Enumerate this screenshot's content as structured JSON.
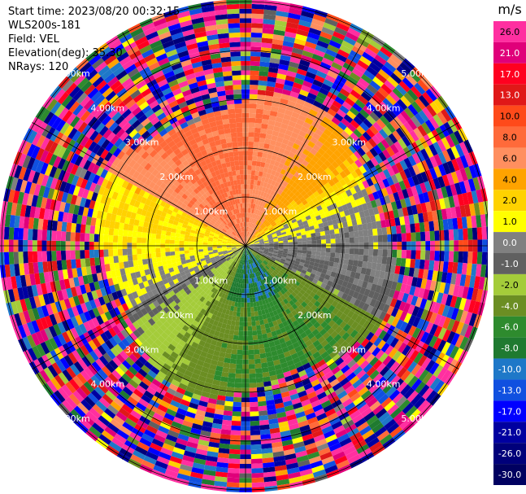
{
  "info": {
    "start_time": "Start time: 2023/08/20 00:32:15",
    "instrument": "WLS200s-181",
    "field": "Field: VEL",
    "elevation": "Elevation(deg): 35.30",
    "nrays": "NRays: 120"
  },
  "colorbar": {
    "unit": "m/s",
    "ticks": [
      "26.0",
      "21.0",
      "17.0",
      "13.0",
      "10.0",
      "8.0",
      "6.0",
      "4.0",
      "2.0",
      "1.0",
      "0.0",
      "-1.0",
      "-2.0",
      "-4.0",
      "-6.0",
      "-8.0",
      "-10.0",
      "-13.0",
      "-17.0",
      "-21.0",
      "-26.0",
      "-30.0"
    ],
    "colors": [
      "#ff2fa0",
      "#e0007a",
      "#ff0020",
      "#e01818",
      "#ff4a1a",
      "#ff6a3a",
      "#ff8f5f",
      "#ffa300",
      "#ffd200",
      "#ffff00",
      "#808080",
      "#606060",
      "#a4cc3a",
      "#6b8e23",
      "#2e8b2e",
      "#1f7a30",
      "#1e78c8",
      "#1050e0",
      "#0000ff",
      "#0000a0",
      "#00007a",
      "#000060"
    ]
  },
  "chart_data": {
    "type": "ppi",
    "field": "VEL",
    "units": "m/s",
    "range_rings_km": [
      1.0,
      2.0,
      3.0,
      4.0,
      5.0
    ],
    "ring_labels": [
      "1.00km",
      "2.00km",
      "3.00km",
      "4.00km",
      "5.00km"
    ],
    "nrays": 120,
    "elevation_deg": 35.3,
    "vmin": -30.0,
    "vmax": 30.0,
    "pattern": {
      "positive_sector": "north-northwest, +2 to +8 m/s (orange/yellow) within 3 km",
      "negative_sector": "south, -1 to -8 m/s (green/blue) within 3 km",
      "noise_beyond_km": 3.0
    }
  }
}
